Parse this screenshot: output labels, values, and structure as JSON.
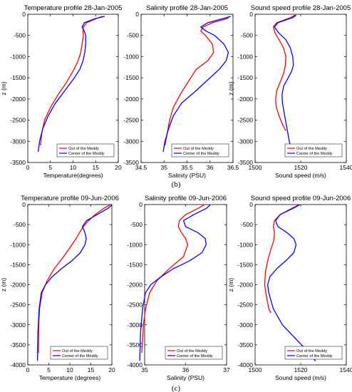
{
  "figure": {
    "captions": [
      "(b)",
      "(c)"
    ],
    "colors": {
      "out": "#ff0000",
      "center": "#0000ff"
    }
  },
  "chart_data": [
    {
      "type": "line",
      "title": "Temperature profile 28-Jan-2005",
      "xlabel": "Temperature(degrees)",
      "ylabel": "z (m)",
      "xlim": [
        0,
        20
      ],
      "ylim": [
        -3500,
        0
      ],
      "xticks": [
        0,
        5,
        10,
        15,
        20
      ],
      "yticks": [
        0,
        -500,
        -1000,
        -1500,
        -2000,
        -2500,
        -3000,
        -3500
      ],
      "legend": "lower-right",
      "series": [
        {
          "name": "Out of the Meddy",
          "color": "#ff0000",
          "x": [
            16.5,
            15.2,
            13.0,
            12.3,
            12.2,
            12.3,
            12.0,
            11.7,
            11.1,
            10.2,
            8.6,
            6.7,
            5.0,
            3.7,
            3.1,
            2.8
          ],
          "y": [
            -50,
            -100,
            -200,
            -300,
            -400,
            -500,
            -700,
            -900,
            -1100,
            -1300,
            -1600,
            -1900,
            -2200,
            -2500,
            -2800,
            -3100
          ]
        },
        {
          "name": "Center of the Meddy",
          "color": "#0000ff",
          "x": [
            17.0,
            15.0,
            12.5,
            12.0,
            12.5,
            12.8,
            12.8,
            12.6,
            12.2,
            11.5,
            10.3,
            8.2,
            6.1,
            4.5,
            3.3,
            2.6,
            2.3
          ],
          "y": [
            -50,
            -100,
            -200,
            -300,
            -400,
            -500,
            -700,
            -900,
            -1100,
            -1300,
            -1500,
            -1800,
            -2100,
            -2400,
            -2700,
            -3000,
            -3250
          ]
        }
      ]
    },
    {
      "type": "line",
      "title": "Salinity profile 28-Jan-2005",
      "xlabel": "Salinity (PSU)",
      "ylabel": "",
      "xlim": [
        34.5,
        36.5
      ],
      "ylim": [
        -3500,
        0
      ],
      "xticks": [
        34.5,
        35,
        35.5,
        36,
        36.5
      ],
      "yticks": [
        0,
        -500,
        -1000,
        -1500,
        -2000,
        -2500,
        -3000,
        -3500
      ],
      "legend": "lower-right",
      "series": [
        {
          "name": "Out of the Meddy",
          "color": "#ff0000",
          "x": [
            36.42,
            36.38,
            36.05,
            35.85,
            35.8,
            35.9,
            36.05,
            36.08,
            35.95,
            35.7,
            35.52,
            35.35,
            35.2,
            35.12,
            35.07,
            35.02
          ],
          "y": [
            -50,
            -100,
            -200,
            -300,
            -400,
            -500,
            -700,
            -900,
            -1100,
            -1300,
            -1600,
            -1900,
            -2200,
            -2500,
            -2800,
            -3100
          ]
        },
        {
          "name": "Center of the Meddy",
          "color": "#0000ff",
          "x": [
            36.45,
            36.3,
            35.95,
            35.8,
            35.92,
            36.1,
            36.3,
            36.4,
            36.35,
            36.2,
            36.0,
            35.7,
            35.38,
            35.2,
            35.1,
            35.02,
            34.98
          ],
          "y": [
            -50,
            -100,
            -200,
            -300,
            -400,
            -500,
            -700,
            -900,
            -1100,
            -1300,
            -1500,
            -1800,
            -2100,
            -2400,
            -2700,
            -3000,
            -3250
          ]
        }
      ]
    },
    {
      "type": "line",
      "title": "Sound speed profile 28-Jan-2005",
      "xlabel": "Sound speed (m/s)",
      "ylabel": "z (m)",
      "xlim": [
        1500,
        1540
      ],
      "ylim": [
        -3500,
        0
      ],
      "xticks": [
        1500,
        1520,
        1540
      ],
      "yticks": [
        0,
        -500,
        -1000,
        -1500,
        -2000,
        -2500,
        -3000,
        -3500
      ],
      "legend": "lower-right",
      "series": [
        {
          "name": "Out of the Meddy",
          "color": "#ff0000",
          "x": [
            1517.5,
            1515.5,
            1509.5,
            1508.0,
            1508.8,
            1510.5,
            1512.5,
            1513.5,
            1513.3,
            1512.5,
            1511.0,
            1509.5,
            1509.0,
            1509.3,
            1510.5,
            1512.0,
            1513.5
          ],
          "y": [
            -20,
            -80,
            -200,
            -300,
            -450,
            -600,
            -800,
            -1000,
            -1200,
            -1400,
            -1600,
            -1800,
            -2000,
            -2200,
            -2400,
            -2600,
            -2750
          ]
        },
        {
          "name": "Center of the Meddy",
          "color": "#0000ff",
          "x": [
            1518.0,
            1516.5,
            1510.0,
            1508.5,
            1510.5,
            1513.5,
            1515.5,
            1516.5,
            1516.8,
            1516.0,
            1514.5,
            1512.5,
            1511.8,
            1512.0,
            1513.0,
            1514.0,
            1515.0,
            1516.0
          ],
          "y": [
            -20,
            -80,
            -200,
            -300,
            -450,
            -600,
            -800,
            -1000,
            -1200,
            -1350,
            -1500,
            -1700,
            -1900,
            -2100,
            -2400,
            -2700,
            -3000,
            -3250
          ]
        }
      ]
    },
    {
      "type": "line",
      "title": "Temperature profile 09-Jun-2006",
      "xlabel": "Temperature (degrees)",
      "ylabel": "z (m)",
      "xlim": [
        0,
        20
      ],
      "ylim": [
        -4000,
        0
      ],
      "xticks": [
        0,
        5,
        10,
        15,
        20
      ],
      "yticks": [
        0,
        -500,
        -1000,
        -1500,
        -2000,
        -2500,
        -3000,
        -3500,
        -4000
      ],
      "legend": "lower-right",
      "series": [
        {
          "name": "Out of the Meddy",
          "color": "#ff0000",
          "x": [
            19.5,
            18.0,
            16.0,
            14.5,
            13.2,
            12.3,
            11.5,
            10.5,
            8.5,
            6.3,
            4.6,
            3.4,
            2.8,
            2.6,
            2.5
          ],
          "y": [
            -10,
            -100,
            -250,
            -400,
            -550,
            -700,
            -850,
            -1000,
            -1300,
            -1600,
            -1900,
            -2200,
            -2600,
            -3000,
            -3700
          ]
        },
        {
          "name": "Center of the Meddy",
          "color": "#0000ff",
          "x": [
            20.0,
            19.0,
            16.5,
            14.0,
            13.0,
            13.6,
            13.9,
            13.6,
            12.5,
            10.5,
            8.0,
            5.8,
            4.2,
            3.2,
            2.7,
            2.4,
            2.3
          ],
          "y": [
            -10,
            -100,
            -250,
            -400,
            -550,
            -700,
            -850,
            -1000,
            -1200,
            -1400,
            -1600,
            -1800,
            -2000,
            -2200,
            -2600,
            -3200,
            -3900
          ]
        }
      ]
    },
    {
      "type": "line",
      "title": "Salinity profile 09-Jun-2006",
      "xlabel": "Salinity (PSU)",
      "ylabel": "",
      "xlim": [
        35,
        37
      ],
      "ylim": [
        -4000,
        0
      ],
      "xticks": [
        35,
        36,
        37
      ],
      "yticks": [
        0,
        -500,
        -1000,
        -1500,
        -2000,
        -2500,
        -3000,
        -3500,
        -4000
      ],
      "legend": "lower-right",
      "series": [
        {
          "name": "Out of the Meddy",
          "color": "#ff0000",
          "x": [
            36.45,
            36.3,
            36.0,
            35.85,
            35.82,
            35.9,
            36.0,
            36.05,
            35.95,
            35.6,
            35.3,
            35.12,
            35.02,
            34.97,
            34.93
          ],
          "y": [
            -10,
            -100,
            -250,
            -400,
            -550,
            -700,
            -850,
            -1000,
            -1300,
            -1600,
            -1900,
            -2200,
            -2600,
            -3000,
            -3700
          ]
        },
        {
          "name": "Center of the Meddy",
          "color": "#0000ff",
          "x": [
            36.6,
            36.5,
            36.2,
            35.95,
            36.0,
            36.3,
            36.48,
            36.5,
            36.4,
            36.1,
            35.7,
            35.4,
            35.15,
            35.02,
            34.95,
            34.9,
            34.88
          ],
          "y": [
            -10,
            -100,
            -250,
            -400,
            -550,
            -700,
            -850,
            -1000,
            -1200,
            -1400,
            -1600,
            -1800,
            -2000,
            -2200,
            -2600,
            -3200,
            -3900
          ]
        }
      ]
    },
    {
      "type": "line",
      "title": "Sound speed profile 09-Jun-2006",
      "xlabel": "Sound speed (m/s)",
      "ylabel": "z (m)",
      "xlim": [
        1500,
        1540
      ],
      "ylim": [
        -4000,
        0
      ],
      "xticks": [
        1500,
        1520,
        1540
      ],
      "yticks": [
        0,
        -500,
        -1000,
        -1500,
        -2000,
        -2500,
        -3000,
        -3500,
        -4000
      ],
      "legend": "lower-right",
      "series": [
        {
          "name": "Out of the Meddy",
          "color": "#ff0000",
          "x": [
            1519.0,
            1516.0,
            1511.0,
            1508.5,
            1508.0,
            1508.5,
            1508.2,
            1507.0,
            1505.5,
            1504.5,
            1504.2,
            1505.0,
            1506.0,
            1507.0
          ],
          "y": [
            -10,
            -100,
            -250,
            -400,
            -550,
            -700,
            -900,
            -1100,
            -1400,
            -1700,
            -2000,
            -2300,
            -2600,
            -2700
          ]
        },
        {
          "name": "Center of the Meddy",
          "color": "#0000ff",
          "x": [
            1519.5,
            1516.5,
            1511.0,
            1509.0,
            1510.0,
            1514.0,
            1517.0,
            1518.0,
            1517.0,
            1513.5,
            1509.5,
            1506.5,
            1505.5,
            1506.0,
            1508.0,
            1512.0,
            1517.0,
            1522.0,
            1526.5
          ],
          "y": [
            -10,
            -100,
            -250,
            -400,
            -550,
            -700,
            -850,
            -1000,
            -1200,
            -1400,
            -1600,
            -1800,
            -2000,
            -2200,
            -2600,
            -3000,
            -3300,
            -3600,
            -3900
          ]
        }
      ]
    }
  ]
}
